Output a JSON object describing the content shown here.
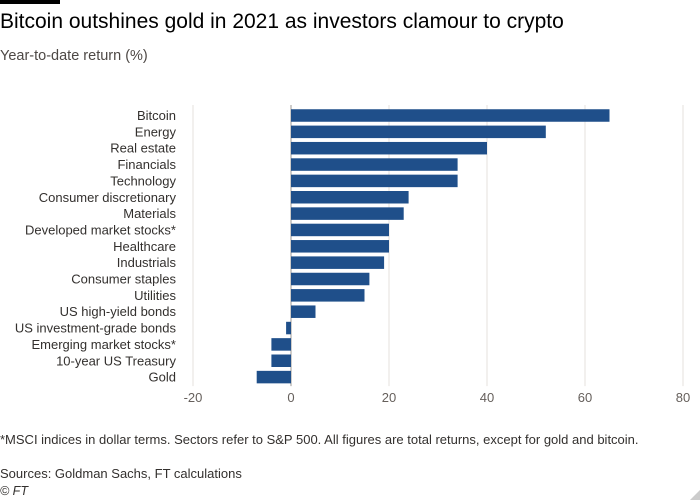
{
  "header": {
    "title": "Bitcoin outshines gold in 2021 as investors clamour to crypto",
    "subtitle": "Year-to-date return (%)"
  },
  "chart_data": {
    "type": "bar",
    "orientation": "horizontal",
    "title": "Bitcoin outshines gold in 2021 as investors clamour to crypto",
    "subtitle": "Year-to-date return (%)",
    "xlabel": "",
    "ylabel": "",
    "xlim": [
      -20,
      80
    ],
    "ticks": [
      -20,
      0,
      20,
      40,
      60,
      80
    ],
    "grid": true,
    "color": "#1f4f8a",
    "categories": [
      "Bitcoin",
      "Energy",
      "Real estate",
      "Financials",
      "Technology",
      "Consumer discretionary",
      "Materials",
      "Developed market stocks*",
      "Healthcare",
      "Industrials",
      "Consumer staples",
      "Utilities",
      "US high-yield bonds",
      "US investment-grade bonds",
      "Emerging market stocks*",
      "10-year US Treasury",
      "Gold"
    ],
    "values": [
      65,
      52,
      40,
      34,
      34,
      24,
      23,
      20,
      20,
      19,
      16,
      15,
      5,
      -1,
      -4,
      -4,
      -7
    ]
  },
  "footer": {
    "footnote": "*MSCI indices in dollar terms. Sectors refer to S&P 500. All figures are total returns, except for gold and bitcoin.",
    "sources": "Sources: Goldman Sachs, FT calculations",
    "credit": "© FT"
  }
}
